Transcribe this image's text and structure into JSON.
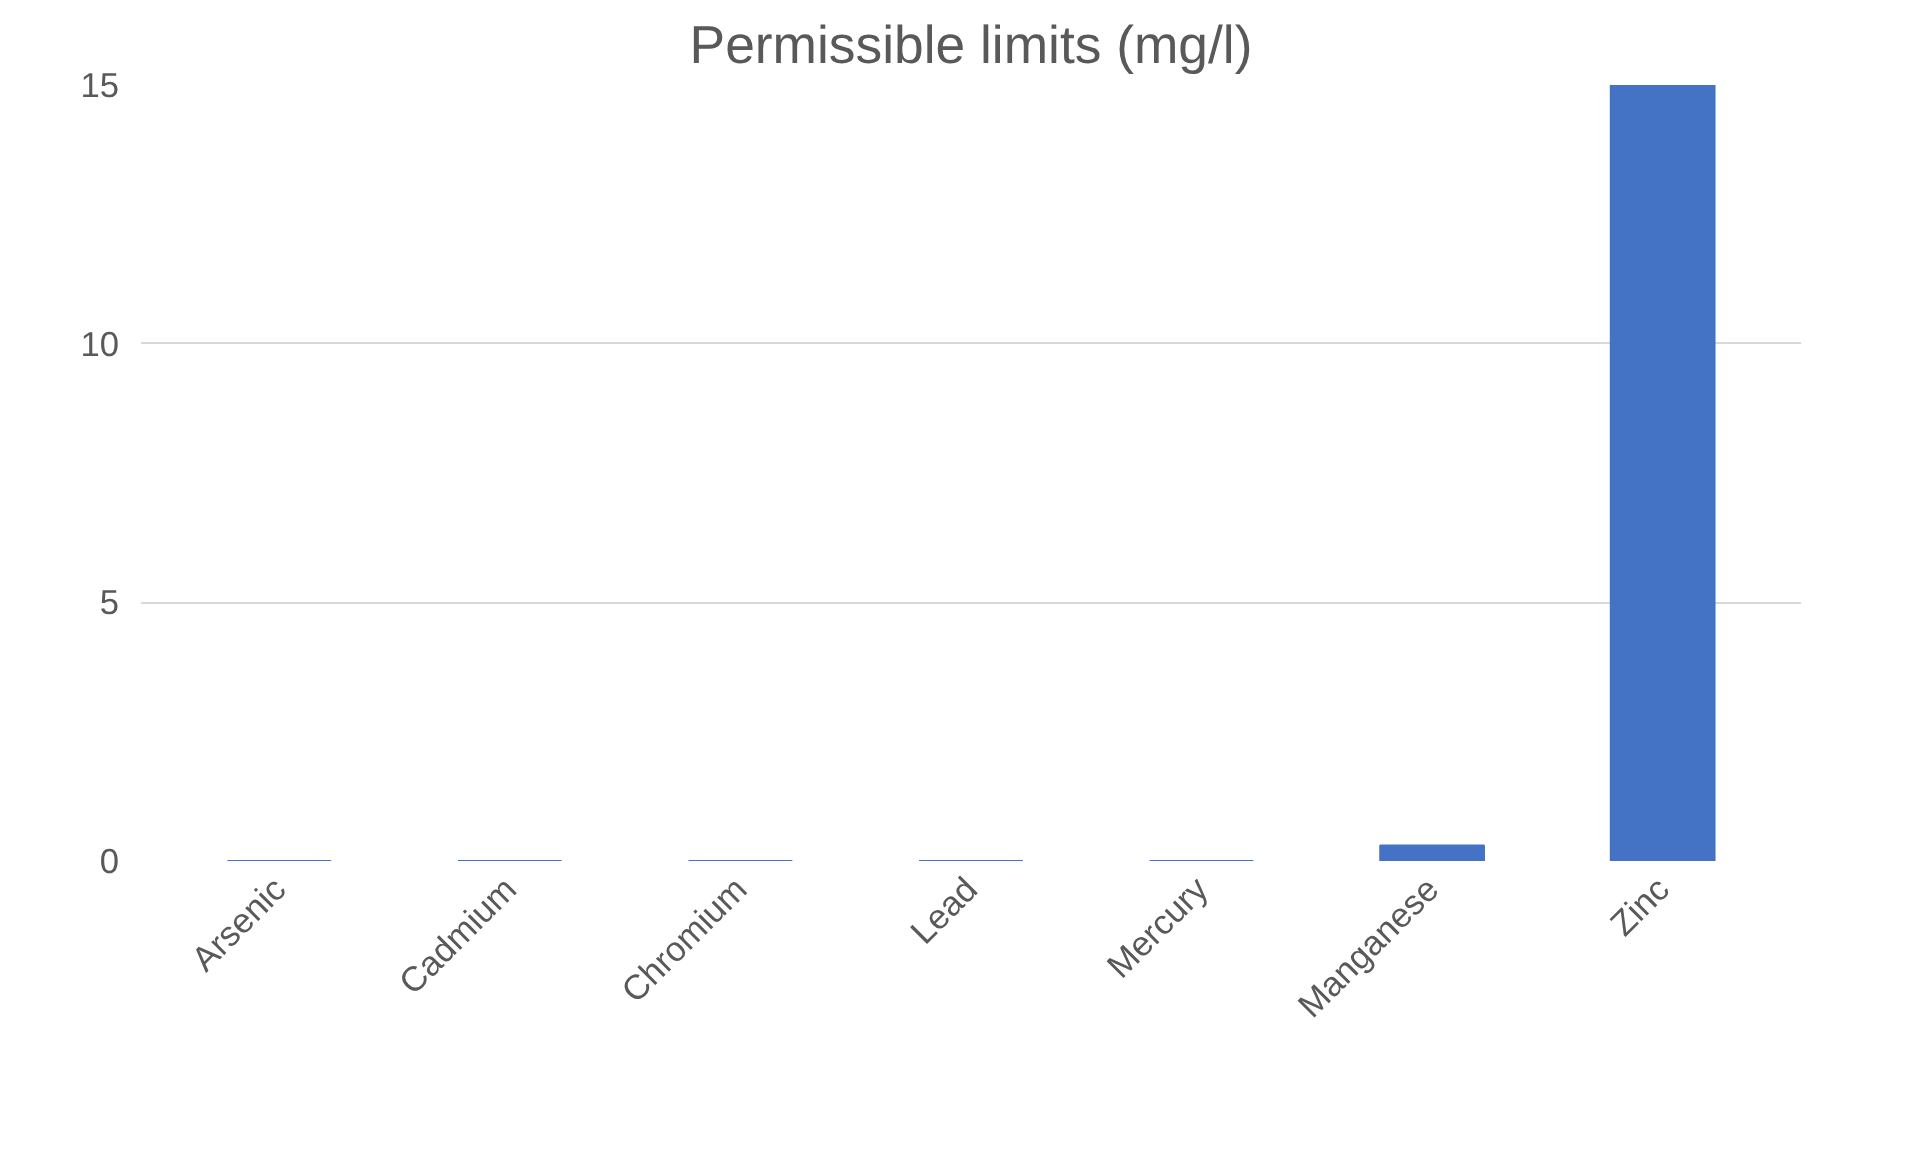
{
  "chart_data": {
    "type": "bar",
    "title": "Permissible limits (mg/l)",
    "categories": [
      "Arsenic",
      "Cadmium",
      "Chromium",
      "Lead",
      "Mercury",
      "Manganese",
      "Zinc"
    ],
    "values": [
      0,
      0,
      0,
      0,
      0,
      0.3,
      15
    ],
    "color": "#4472c4",
    "ylim": [
      0,
      15
    ],
    "yticks": [
      0,
      5,
      10,
      15
    ],
    "grid": "y"
  }
}
